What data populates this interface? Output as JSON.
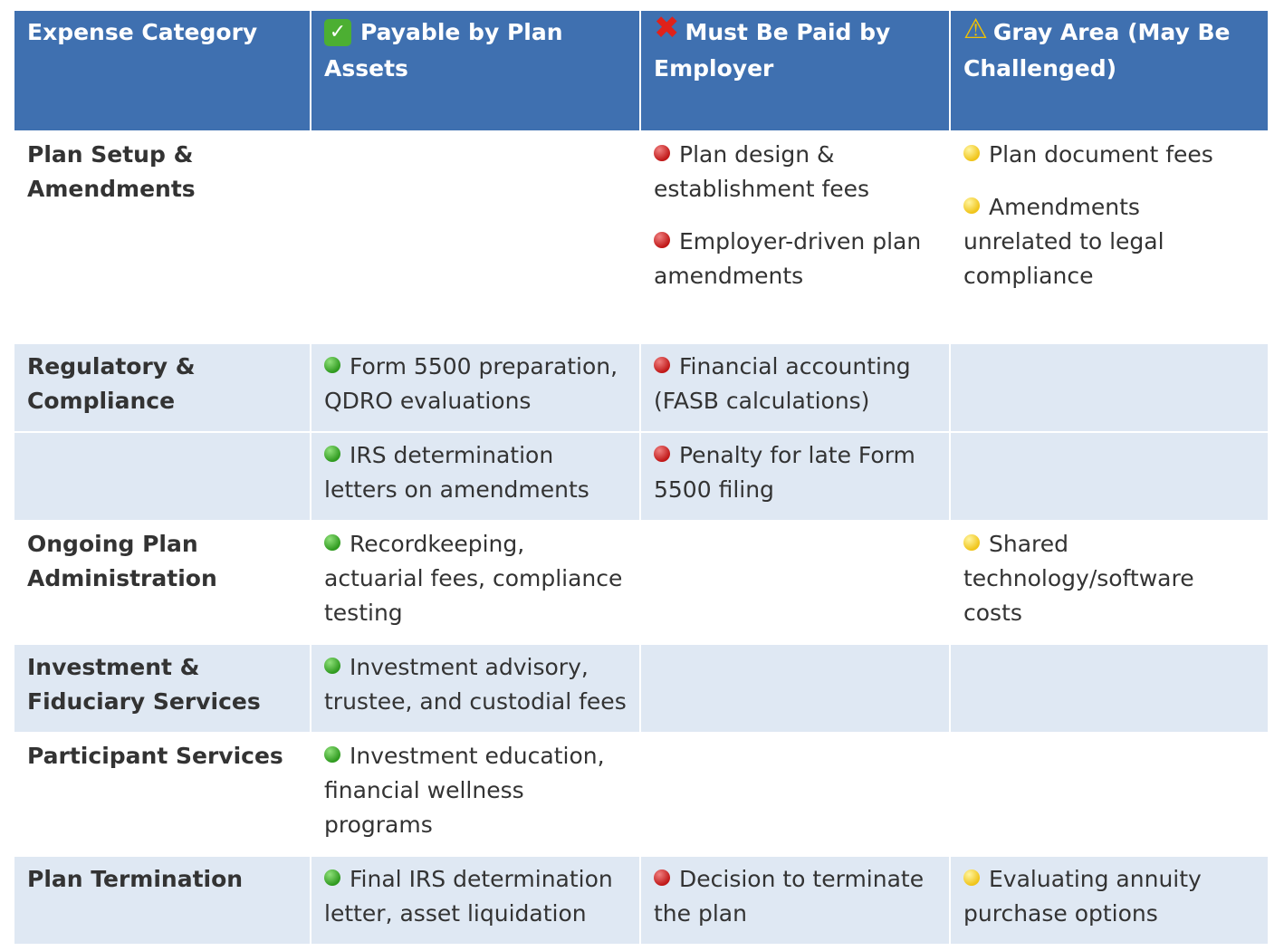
{
  "headers": [
    {
      "label": "Expense Category",
      "icon": ""
    },
    {
      "label": "Payable by Plan Assets",
      "icon": "check-icon"
    },
    {
      "label": "Must Be Paid by Employer",
      "icon": "cross-icon"
    },
    {
      "label": "Gray Area (May Be Challenged)",
      "icon": "warning-icon"
    }
  ],
  "colors": {
    "header": "#3f70b0",
    "band": "#dfe8f3",
    "green": "#2f9a1f",
    "red": "#c01818",
    "yellow": "#f0c419"
  },
  "rows": [
    {
      "category": "Plan Setup & Amendments",
      "band": false,
      "h": 234,
      "plan_assets": [],
      "employer": [
        "Plan design & establishment fees",
        "Employer-driven plan amendments"
      ],
      "gray": [
        "Plan document fees",
        "Amendments unrelated to legal compliance"
      ]
    },
    {
      "category": "Regulatory & Compliance",
      "band": true,
      "h": 94,
      "plan_assets": [
        "Form 5500 preparation, QDRO evaluations"
      ],
      "employer": [
        "Financial accounting (FASB calculations)"
      ],
      "gray": []
    },
    {
      "category": "",
      "band": true,
      "h": 96,
      "plan_assets": [
        "IRS determination letters on amendments"
      ],
      "employer": [
        "Penalty for late Form 5500 filing"
      ],
      "gray": []
    },
    {
      "category": "Ongoing Plan Administration",
      "band": false,
      "h": 136,
      "plan_assets": [
        "Recordkeeping, actuarial fees, compliance testing"
      ],
      "employer": [],
      "gray": [
        "Shared technology/software costs"
      ]
    },
    {
      "category": "Investment & Fiduciary Services",
      "band": true,
      "h": 96,
      "plan_assets": [
        "Investment advisory, trustee, and custodial fees"
      ],
      "employer": [],
      "gray": []
    },
    {
      "category": "Participant Services",
      "band": false,
      "h": 136,
      "plan_assets": [
        "Investment education, financial wellness programs"
      ],
      "employer": [],
      "gray": []
    },
    {
      "category": "Plan Termination",
      "band": true,
      "h": 94,
      "plan_assets": [
        "Final IRS determination letter, asset liquidation"
      ],
      "employer": [
        "Decision to terminate the plan"
      ],
      "gray": [
        "Evaluating annuity purchase options"
      ]
    }
  ]
}
